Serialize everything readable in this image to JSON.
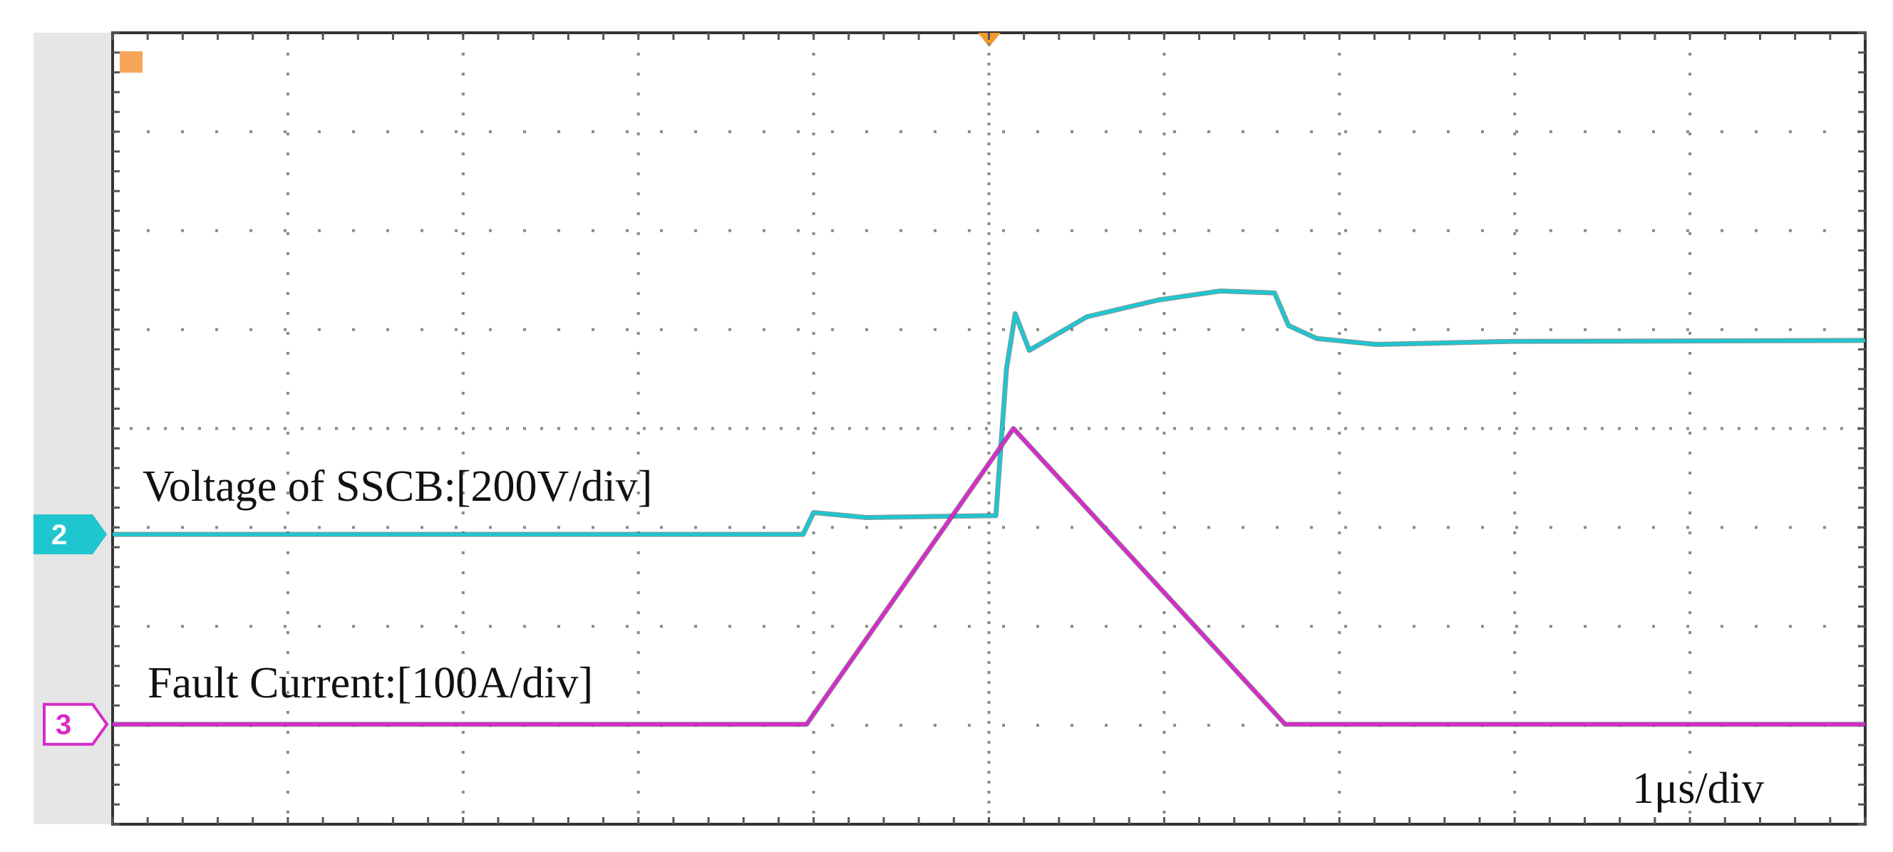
{
  "chart_data": {
    "type": "line",
    "x_label": "1μs/div",
    "xlim": [
      0,
      10
    ],
    "ylim": [
      0,
      8
    ],
    "grid": true,
    "series": [
      {
        "name": "Voltage of SSCB:[200V/div]",
        "marker": "2",
        "color": "#1fc6d0",
        "x": [
          0,
          3.94,
          4.0,
          4.3,
          5.04,
          5.1,
          5.15,
          5.23,
          5.56,
          5.97,
          6.32,
          6.63,
          6.71,
          6.87,
          7.21,
          7.97,
          10
        ],
        "values": [
          2.93,
          2.93,
          3.15,
          3.1,
          3.12,
          4.6,
          5.16,
          4.79,
          5.13,
          5.3,
          5.39,
          5.37,
          5.04,
          4.91,
          4.85,
          4.88,
          4.89
        ]
      },
      {
        "name": "Fault Current:[100A/div]",
        "marker": "3",
        "color": "#d62bc8",
        "x": [
          0,
          3.96,
          5.14,
          6.69,
          10
        ],
        "values": [
          1.01,
          1.01,
          4.0,
          1.01,
          1.01
        ]
      }
    ]
  }
}
